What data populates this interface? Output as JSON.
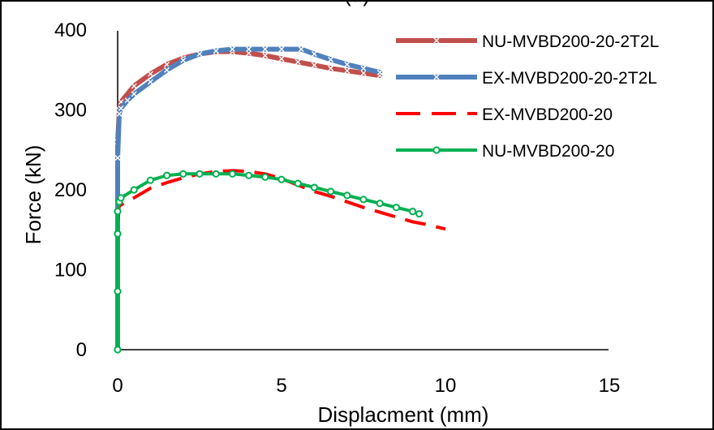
{
  "panel_label": "(a)",
  "chart_data": {
    "type": "line",
    "xlabel": "Displacment (mm)",
    "ylabel": "Force (kN)",
    "xlim": [
      0,
      15
    ],
    "ylim": [
      0,
      400
    ],
    "xticks": [
      0,
      5,
      10,
      15
    ],
    "yticks": [
      0,
      100,
      200,
      300,
      400
    ],
    "grid": false,
    "legend_position": "top-right",
    "series": [
      {
        "name": "NU-MVBD200-20-2T2L",
        "color": "#c0504d",
        "style": "solid-x-markers",
        "x": [
          0,
          0,
          0.05,
          0.1,
          0.5,
          1.0,
          1.5,
          2.0,
          2.5,
          3.0,
          3.5,
          4.0,
          4.5,
          5.0,
          5.5,
          6.0,
          6.5,
          7.0,
          7.5,
          8.0
        ],
        "y": [
          0,
          260,
          300,
          310,
          330,
          345,
          357,
          365,
          370,
          373,
          373,
          371,
          368,
          364,
          360,
          356,
          352,
          349,
          346,
          343
        ]
      },
      {
        "name": "EX-MVBD200-20-2T2L",
        "color": "#4f81bd",
        "style": "solid-x-markers",
        "x": [
          0,
          0,
          0.05,
          0.1,
          0.3,
          0.5,
          1.0,
          1.5,
          2.0,
          2.5,
          3.0,
          3.5,
          4.0,
          4.5,
          5.0,
          5.6,
          6.0,
          6.5,
          7.0,
          7.5,
          8.0
        ],
        "y": [
          0,
          240,
          295,
          302,
          312,
          320,
          335,
          350,
          362,
          370,
          374,
          376,
          376,
          376,
          376,
          376,
          370,
          363,
          357,
          352,
          347
        ]
      },
      {
        "name": "EX-MVBD200-20",
        "color": "#ff0000",
        "style": "long-dash",
        "x": [
          0,
          0.05,
          0.5,
          1.0,
          1.5,
          2.0,
          2.5,
          3.0,
          3.5,
          4.0,
          4.5,
          5.0,
          5.5,
          6.0,
          6.5,
          7.0,
          7.5,
          8.0,
          8.5,
          9.0,
          9.5,
          10.0
        ],
        "y": [
          160,
          180,
          190,
          202,
          209,
          215,
          220,
          223,
          224,
          223,
          220,
          214,
          206,
          198,
          192,
          185,
          178,
          172,
          166,
          160,
          156,
          151
        ]
      },
      {
        "name": "NU-MVBD200-20",
        "color": "#00b050",
        "style": "solid-circle-markers",
        "x": [
          0,
          0,
          0,
          0,
          0.05,
          0.1,
          0.5,
          1.0,
          1.5,
          2.0,
          2.5,
          3.0,
          3.5,
          4.0,
          4.5,
          5.0,
          5.5,
          6.0,
          6.5,
          7.0,
          7.5,
          8.0,
          8.5,
          9.0,
          9.2
        ],
        "y": [
          0,
          73,
          145,
          173,
          185,
          190,
          200,
          212,
          218,
          220,
          220,
          220,
          220,
          218,
          216,
          213,
          208,
          203,
          198,
          193,
          188,
          183,
          178,
          173,
          170
        ]
      }
    ]
  }
}
